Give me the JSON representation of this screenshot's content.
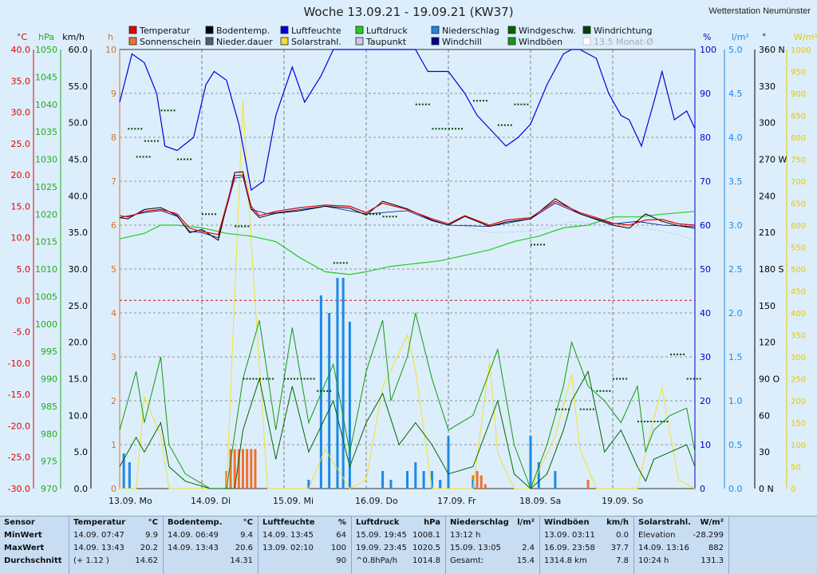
{
  "header": {
    "title": "Woche 13.09.21 - 19.09.21 (KW37)",
    "station": "Wetterstation Neumünster"
  },
  "legend": [
    {
      "label": "Temperatur",
      "color": "#e00000"
    },
    {
      "label": "Bodentemp.",
      "color": "#000000"
    },
    {
      "label": "Luftfeuchte",
      "color": "#0000dd"
    },
    {
      "label": "Luftdruck",
      "color": "#22cc22"
    },
    {
      "label": "Niederschlag",
      "color": "#1e88e5"
    },
    {
      "label": "Windgeschw.",
      "color": "#006600"
    },
    {
      "label": "Windrichtung",
      "color": "#004400"
    },
    {
      "label": "Sonnenschein",
      "color": "#f07030"
    },
    {
      "label": "Nieder.dauer",
      "color": "#446666"
    },
    {
      "label": "Solarstrahl.",
      "color": "#f2e030"
    },
    {
      "label": "Taupunkt",
      "color": "#c8c8f0"
    },
    {
      "label": "Windchill",
      "color": "#000088"
    },
    {
      "label": "Windböen",
      "color": "#119911"
    },
    {
      "label": "13.5 Monat-Ø",
      "color": "#dddddd"
    }
  ],
  "chart_data": {
    "type": "line",
    "title": "Woche 13.09.21 - 19.09.21 (KW37)",
    "x_labels": [
      "13.09.  Mo",
      "14.09.  Di",
      "15.09.  Mi",
      "16.09.  Do",
      "17.09.  Fr",
      "18.09.  Sa",
      "19.09.  So"
    ],
    "axes": [
      {
        "unit": "°C",
        "color": "#e00000",
        "range": [
          -30,
          40
        ],
        "ticks": [
          "40.0",
          "35.0",
          "30.0",
          "25.0",
          "20.0",
          "15.0",
          "10.0",
          "5.0",
          "0.0",
          "-5.0",
          "-10.0",
          "-15.0",
          "-20.0",
          "-25.0",
          "-30.0"
        ]
      },
      {
        "unit": "hPa",
        "color": "#22aa22",
        "range": [
          970,
          1050
        ],
        "ticks": [
          "1050",
          "1045",
          "1040",
          "1035",
          "1030",
          "1025",
          "1020",
          "1015",
          "1010",
          "1005",
          "1000",
          "995",
          "990",
          "985",
          "980",
          "975",
          "970"
        ]
      },
      {
        "unit": "km/h",
        "color": "#000000",
        "range": [
          0,
          60
        ],
        "ticks": [
          "60.0",
          "55.0",
          "50.0",
          "45.0",
          "40.0",
          "35.0",
          "30.0",
          "25.0",
          "20.0",
          "15.0",
          "10.0",
          "5.0",
          "0.0"
        ]
      },
      {
        "unit": "h",
        "color": "#e07020",
        "range": [
          0,
          10
        ],
        "ticks": [
          "10",
          "9",
          "8",
          "7",
          "6",
          "5",
          "4",
          "3",
          "2",
          "1",
          "0"
        ]
      },
      {
        "unit": "%",
        "color": "#0000cc",
        "range": [
          0,
          100
        ],
        "ticks": [
          "100",
          "90",
          "80",
          "70",
          "60",
          "50",
          "40",
          "30",
          "20",
          "10",
          "0"
        ]
      },
      {
        "unit": "l/m²",
        "color": "#1e88e5",
        "range": [
          0,
          5
        ],
        "ticks": [
          "5.0",
          "4.5",
          "4.0",
          "3.5",
          "3.0",
          "2.5",
          "2.0",
          "1.5",
          "1.0",
          "0.5",
          "0.0"
        ]
      },
      {
        "unit": "°",
        "color": "#000000",
        "range": [
          0,
          360
        ],
        "ticks": [
          "360 N",
          "330",
          "300",
          "270 W",
          "240",
          "210",
          "180 S",
          "150",
          "120",
          "90  O",
          "60",
          "30",
          "0   N"
        ]
      },
      {
        "unit": "W/m²",
        "color": "#e8c800",
        "range": [
          0,
          1000
        ],
        "ticks": [
          "1000",
          "950",
          "900",
          "850",
          "800",
          "750",
          "700",
          "650",
          "600",
          "550",
          "500",
          "450",
          "400",
          "350",
          "300",
          "250",
          "200",
          "150",
          "100",
          "50",
          "0"
        ]
      }
    ],
    "series": [
      {
        "name": "Temperatur",
        "unit": "°C",
        "x": [
          0,
          0.1,
          0.3,
          0.5,
          0.7,
          0.85,
          1.0,
          1.2,
          1.4,
          1.5,
          1.6,
          1.7,
          1.9,
          2.2,
          2.5,
          2.8,
          3.0,
          3.2,
          3.5,
          3.8,
          4.0,
          4.2,
          4.5,
          4.7,
          5.0,
          5.3,
          5.6,
          5.8,
          6.0,
          6.2,
          6.4,
          6.6,
          6.8,
          7.0
        ],
        "values": [
          13.5,
          13.3,
          14.2,
          14.5,
          13.8,
          11.5,
          11.0,
          10.5,
          19.9,
          20.0,
          15.0,
          13.5,
          14.2,
          14.8,
          15.2,
          15.0,
          14.0,
          15.5,
          14.5,
          13.0,
          12.2,
          13.5,
          12.0,
          12.8,
          13.2,
          15.8,
          14.0,
          13.2,
          12.3,
          12.0,
          12.8,
          12.9,
          12.2,
          12.0
        ]
      },
      {
        "name": "Bodentemp.",
        "unit": "°C",
        "x": [
          0,
          0.1,
          0.3,
          0.5,
          0.7,
          0.85,
          1.0,
          1.2,
          1.4,
          1.5,
          1.6,
          1.7,
          1.9,
          2.2,
          2.5,
          2.8,
          3.0,
          3.2,
          3.5,
          3.8,
          4.0,
          4.2,
          4.5,
          4.7,
          5.0,
          5.3,
          5.6,
          5.8,
          6.0,
          6.2,
          6.4,
          6.6,
          6.8,
          7.0
        ],
        "values": [
          13.2,
          13.0,
          14.5,
          14.8,
          13.5,
          10.8,
          11.3,
          9.6,
          20.4,
          20.5,
          14.6,
          13.2,
          13.9,
          14.3,
          15.0,
          14.7,
          13.6,
          15.8,
          14.6,
          12.8,
          12.0,
          13.4,
          11.8,
          12.5,
          13.0,
          16.2,
          13.8,
          12.9,
          12.0,
          11.5,
          13.8,
          12.6,
          11.9,
          11.5
        ]
      },
      {
        "name": "Luftfeuchte",
        "unit": "%",
        "x": [
          0,
          0.15,
          0.3,
          0.45,
          0.55,
          0.7,
          0.9,
          1.05,
          1.15,
          1.3,
          1.45,
          1.6,
          1.75,
          1.9,
          2.1,
          2.25,
          2.45,
          2.6,
          3.0,
          3.4,
          3.6,
          3.75,
          4.0,
          4.2,
          4.35,
          4.55,
          4.7,
          4.85,
          5.0,
          5.2,
          5.4,
          5.5,
          5.6,
          5.8,
          5.95,
          6.1,
          6.2,
          6.35,
          6.5,
          6.6,
          6.75,
          6.9,
          7.0
        ],
        "values": [
          88,
          99,
          97,
          90,
          78,
          77,
          80,
          92,
          95,
          93,
          83,
          68,
          70,
          85,
          96,
          88,
          94,
          100,
          100,
          100,
          100,
          95,
          95,
          90,
          85,
          81,
          78,
          80,
          83,
          92,
          99,
          100,
          100,
          98,
          90,
          85,
          84,
          78,
          88,
          95,
          84,
          86,
          82
        ]
      },
      {
        "name": "Luftdruck",
        "unit": "hPa",
        "x": [
          0,
          0.3,
          0.5,
          0.7,
          1.0,
          1.3,
          1.6,
          1.9,
          2.2,
          2.5,
          2.8,
          3.0,
          3.3,
          3.6,
          3.9,
          4.2,
          4.5,
          4.8,
          5.1,
          5.4,
          5.7,
          6.0,
          6.3,
          6.6,
          7.0
        ],
        "values": [
          1015.5,
          1016.5,
          1018,
          1018,
          1017.5,
          1016.5,
          1016,
          1015,
          1012,
          1009.5,
          1009,
          1009.5,
          1010.5,
          1011,
          1011.5,
          1012.5,
          1013.5,
          1015,
          1016,
          1017.5,
          1018,
          1019.5,
          1019.5,
          1020,
          1020.5
        ]
      },
      {
        "name": "Windchill",
        "unit": "°C",
        "x": [
          0,
          0.3,
          0.5,
          0.7,
          0.85,
          1.0,
          1.2,
          1.4,
          1.5,
          1.6,
          1.8,
          2.2,
          2.5,
          3.0,
          3.5,
          3.8,
          4.0,
          4.5,
          5.0,
          5.3,
          5.6,
          6.0,
          6.3,
          6.6,
          7.0
        ],
        "values": [
          13.2,
          14.0,
          14.3,
          13.4,
          11.0,
          10.8,
          10.0,
          19.5,
          19.7,
          14.5,
          13.8,
          14.5,
          15.0,
          13.8,
          14.3,
          12.7,
          12.0,
          11.8,
          13.0,
          15.5,
          13.8,
          12.2,
          12.6,
          12.0,
          11.8
        ]
      },
      {
        "name": "Taupunkt",
        "unit": "°C",
        "x": [
          4.2,
          4.5,
          5.0,
          5.5,
          6.0,
          6.4,
          6.8,
          7.0
        ],
        "values": [
          11.8,
          10.8,
          11.0,
          12.5,
          12.0,
          11.5,
          10.5,
          9.5
        ]
      },
      {
        "name": "Windgeschw.",
        "unit": "km/h",
        "x": [
          0,
          0.2,
          0.3,
          0.5,
          0.6,
          0.8,
          1.1,
          1.4,
          1.5,
          1.7,
          1.9,
          2.1,
          2.3,
          2.6,
          2.8,
          3.0,
          3.2,
          3.4,
          3.6,
          3.8,
          4.0,
          4.3,
          4.6,
          4.8,
          5.0,
          5.2,
          5.4,
          5.5,
          5.7,
          5.9,
          6.1,
          6.3,
          6.4,
          6.5,
          6.7,
          6.9,
          7.0
        ],
        "values": [
          3,
          7,
          5,
          9,
          3,
          1,
          0,
          0,
          8,
          15,
          4,
          14,
          5,
          12,
          3,
          9,
          13,
          6,
          9,
          6,
          2,
          3,
          12,
          2,
          0,
          2,
          8,
          12,
          16,
          5,
          8,
          3,
          1,
          4,
          5,
          6,
          3
        ]
      },
      {
        "name": "Windböen",
        "unit": "km/h",
        "x": [
          0,
          0.2,
          0.3,
          0.5,
          0.6,
          0.8,
          1.1,
          1.3,
          1.5,
          1.7,
          1.9,
          2.1,
          2.3,
          2.6,
          2.8,
          3.0,
          3.2,
          3.3,
          3.5,
          3.6,
          3.8,
          4.0,
          4.3,
          4.6,
          4.8,
          5.0,
          5.2,
          5.4,
          5.5,
          5.7,
          5.9,
          6.1,
          6.3,
          6.4,
          6.5,
          6.7,
          6.9,
          7.0
        ],
        "values": [
          8,
          16,
          9,
          18,
          6,
          2,
          0,
          0,
          15,
          23,
          8,
          22,
          9,
          17,
          5,
          16,
          23,
          12,
          18,
          24,
          15,
          8,
          10,
          19,
          6,
          0,
          6,
          14,
          20,
          14,
          12,
          9,
          14,
          5,
          8,
          10,
          11,
          5
        ]
      },
      {
        "name": "Solarstrahl.",
        "unit": "W/m²",
        "x": [
          0,
          0.2,
          0.3,
          0.5,
          0.6,
          0.8,
          1.0,
          1.3,
          1.5,
          1.6,
          1.8,
          2.0,
          2.3,
          2.5,
          2.8,
          3.0,
          3.2,
          3.5,
          3.6,
          3.8,
          4.0,
          4.3,
          4.5,
          4.6,
          4.8,
          5.0,
          5.3,
          5.5,
          5.6,
          5.8,
          6.0,
          6.3,
          6.5,
          6.6,
          6.8,
          7.0
        ],
        "values": [
          0,
          0,
          210,
          120,
          0,
          0,
          0,
          0,
          882,
          560,
          0,
          0,
          0,
          90,
          0,
          20,
          230,
          350,
          270,
          0,
          0,
          0,
          290,
          80,
          0,
          0,
          120,
          260,
          90,
          0,
          0,
          0,
          160,
          230,
          20,
          0
        ]
      },
      {
        "name": "Windrichtung",
        "unit": "°",
        "x": [
          0.1,
          0.2,
          0.3,
          0.5,
          0.7,
          1.0,
          1.4,
          1.5,
          1.7,
          2.0,
          2.2,
          2.4,
          2.6,
          3.0,
          3.2,
          3.6,
          3.8,
          4.0,
          4.3,
          4.6,
          4.8,
          5.0,
          5.3,
          5.6,
          5.8,
          6.0,
          6.3,
          6.5,
          6.7,
          6.9
        ],
        "values": [
          295,
          272,
          285,
          310,
          270,
          225,
          215,
          90,
          90,
          90,
          90,
          80,
          185,
          225,
          223,
          315,
          295,
          295,
          318,
          298,
          315,
          200,
          65,
          65,
          80,
          90,
          55,
          55,
          110,
          90
        ]
      },
      {
        "name": "Niederschlag",
        "unit": "l/m²",
        "x": [
          0.05,
          0.12,
          2.3,
          2.45,
          2.55,
          2.65,
          2.72,
          2.8,
          3.2,
          3.3,
          3.5,
          3.6,
          3.7,
          3.8,
          3.9,
          4.0,
          4.3,
          5.0,
          5.1,
          5.3
        ],
        "values": [
          0.4,
          0.3,
          0.1,
          2.2,
          2.0,
          2.4,
          2.4,
          1.9,
          0.2,
          0.1,
          0.2,
          0.3,
          0.2,
          0.2,
          0.1,
          0.6,
          0.1,
          0.6,
          0.3,
          0.2
        ]
      },
      {
        "name": "Sonnenschein",
        "unit": "h",
        "x": [
          1.3,
          1.35,
          1.4,
          1.45,
          1.5,
          1.55,
          1.6,
          1.65,
          3.9,
          4.3,
          4.35,
          4.4,
          4.45,
          5.7
        ],
        "values": [
          0.4,
          0.9,
          0.9,
          0.9,
          0.9,
          0.9,
          0.9,
          0.9,
          0.2,
          0.3,
          0.4,
          0.3,
          0.1,
          0.2
        ]
      }
    ]
  },
  "stats": {
    "row_labels": [
      "Sensor",
      "MinWert",
      "MaxWert",
      "Durchschnitt"
    ],
    "columns": [
      {
        "title": "Temperatur",
        "unit": "°C",
        "rows": [
          [
            "14.09.  07:47",
            "9.9"
          ],
          [
            "14.09.  13:43",
            "20.2"
          ],
          [
            "(+ 1.12 )",
            "14.62"
          ]
        ]
      },
      {
        "title": "Bodentemp.",
        "unit": "°C",
        "rows": [
          [
            "14.09.  06:49",
            "9.4"
          ],
          [
            "14.09.  13:43",
            "20.6"
          ],
          [
            "",
            "14.31"
          ]
        ]
      },
      {
        "title": "Luftfeuchte",
        "unit": "%",
        "rows": [
          [
            "14.09.  13:45",
            "64"
          ],
          [
            "13.09.  02:10",
            "100"
          ],
          [
            "",
            "90"
          ]
        ]
      },
      {
        "title": "Luftdruck",
        "unit": "hPa",
        "rows": [
          [
            "15.09.  19:45",
            "1008.1"
          ],
          [
            "19.09.  23:45",
            "1020.5"
          ],
          [
            "^0.8hPa/h",
            "1014.8"
          ]
        ]
      },
      {
        "title": "Niederschlag",
        "unit": "l/m²",
        "rows": [
          [
            "13:12 h",
            ""
          ],
          [
            "15.09.  13:05",
            "2.4"
          ],
          [
            "Gesamt:",
            "15.4"
          ]
        ]
      },
      {
        "title": "Windböen",
        "unit": "km/h",
        "rows": [
          [
            "13.09.  03:11",
            "0.0"
          ],
          [
            "16.09.  23:58",
            "37.7"
          ],
          [
            "1314.8 km",
            "7.8"
          ]
        ]
      },
      {
        "title": "Solarstrahl.",
        "unit": "W/m²",
        "rows": [
          [
            "Elevation",
            "-28.299"
          ],
          [
            "14.09.  13:16",
            "882"
          ],
          [
            "10:24 h",
            "131.3"
          ]
        ]
      }
    ]
  }
}
